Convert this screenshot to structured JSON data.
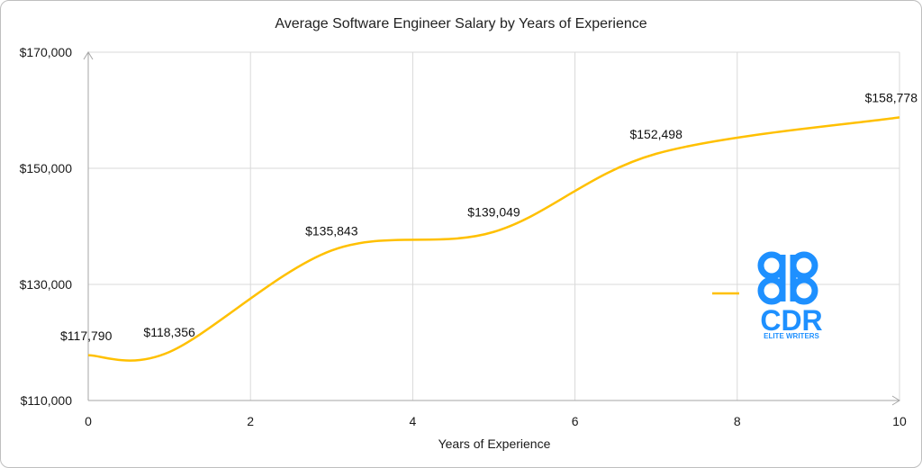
{
  "chart_data": {
    "type": "line",
    "title": "Average Software Engineer Salary by Years of Experience",
    "xlabel": "Years of Experience",
    "ylabel": "",
    "x": [
      0,
      1,
      3,
      5,
      7,
      10
    ],
    "values": [
      117790,
      118356,
      135843,
      139049,
      152498,
      158778
    ],
    "data_labels": [
      "$117,790",
      "$118,356",
      "$135,843",
      "$139,049",
      "$152,498",
      "$158,778"
    ],
    "xlim": [
      0,
      10
    ],
    "ylim": [
      110000,
      170000
    ],
    "x_ticks": [
      0,
      2,
      4,
      6,
      8,
      10
    ],
    "x_tick_labels": [
      "0",
      "2",
      "4",
      "6",
      "8",
      "10"
    ],
    "y_ticks": [
      110000,
      130000,
      150000,
      170000
    ],
    "y_tick_labels": [
      "$110,000",
      "$130,000",
      "$150,000",
      "$170,000"
    ],
    "grid": true,
    "smooth": true,
    "line_color": "#FFC000",
    "legend_placement": "right"
  },
  "logo": {
    "letters": "CDR",
    "tagline": "ELITE WRITERS",
    "color": "#1E90FF"
  }
}
